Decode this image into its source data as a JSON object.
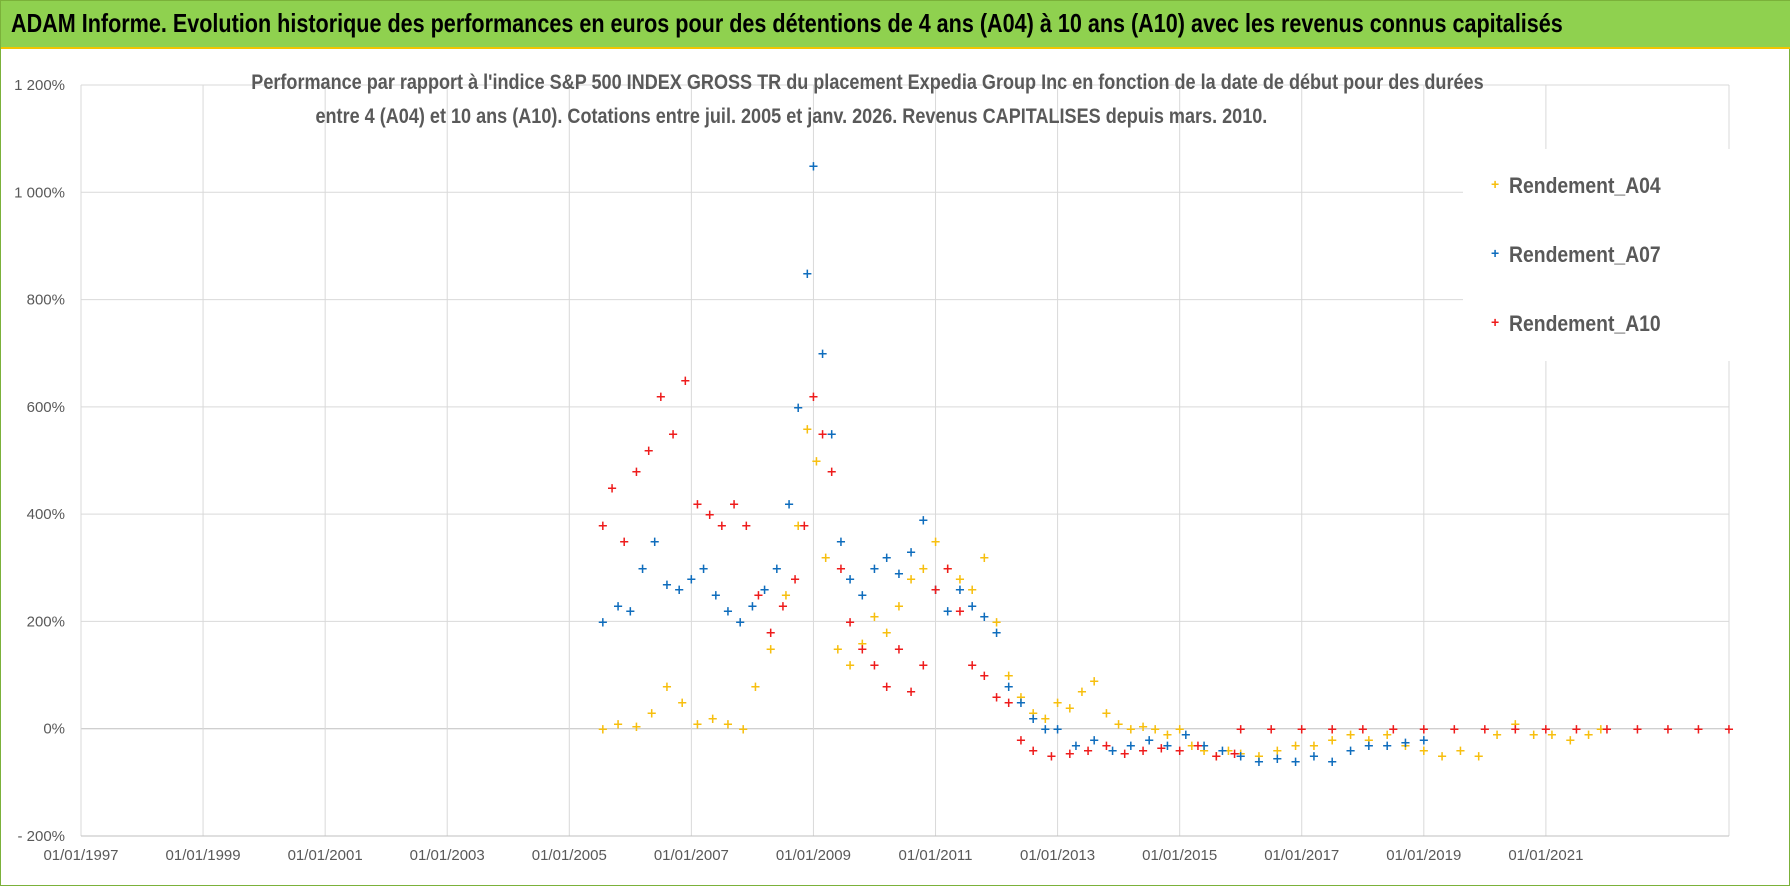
{
  "banner": {
    "title": "ADAM Informe. Evolution historique des performances en euros pour des détentions de 4 ans (A04) à 10 ans (A10) avec les revenus connus capitalisés"
  },
  "chart_data": {
    "type": "scatter",
    "title_line1": "Performance par rapport à l'indice S&P 500 INDEX GROSS TR  du placement Expedia Group Inc en fonction de la date de début pour des durées",
    "title_line2": "entre 4 (A04) et 10 ans (A10).  Cotations entre juil. 2005 et janv. 2026. Revenus CAPITALISES depuis mars. 2010.",
    "xlabel": "",
    "ylabel": "",
    "xlim": [
      1997.0,
      2024.0
    ],
    "ylim": [
      -200,
      1200
    ],
    "grid": true,
    "x_tick_values": [
      1997,
      1999,
      2001,
      2003,
      2005,
      2007,
      2009,
      2011,
      2013,
      2015,
      2017,
      2019,
      2021
    ],
    "x_tick_labels": [
      "01/01/1997",
      "01/01/1999",
      "01/01/2001",
      "01/01/2003",
      "01/01/2005",
      "01/01/2007",
      "01/01/2009",
      "01/01/2011",
      "01/01/2013",
      "01/01/2015",
      "01/01/2017",
      "01/01/2019",
      "01/01/2021"
    ],
    "y_tick_values": [
      1200,
      1000,
      800,
      600,
      400,
      200,
      0,
      -200
    ],
    "y_tick_labels": [
      "1 200%",
      "1 000%",
      "800%",
      "600%",
      "400%",
      "200%",
      "0%",
      "- 200%"
    ],
    "legend_position": "top-right",
    "series": [
      {
        "name": "Rendement_A04",
        "color": "#f7bf0f",
        "x": [
          2005.55,
          2005.8,
          2006.1,
          2006.35,
          2006.6,
          2006.85,
          2007.1,
          2007.35,
          2007.6,
          2007.85,
          2008.05,
          2008.3,
          2008.55,
          2008.75,
          2008.9,
          2009.05,
          2009.2,
          2009.4,
          2009.6,
          2009.8,
          2010.0,
          2010.2,
          2010.4,
          2010.6,
          2010.8,
          2011.0,
          2011.2,
          2011.4,
          2011.6,
          2011.8,
          2012.0,
          2012.2,
          2012.4,
          2012.6,
          2012.8,
          2013.0,
          2013.2,
          2013.4,
          2013.6,
          2013.8,
          2014.0,
          2014.2,
          2014.4,
          2014.6,
          2014.8,
          2015.0,
          2015.2,
          2015.4,
          2015.6,
          2015.8,
          2016.0,
          2016.3,
          2016.6,
          2016.9,
          2017.2,
          2017.5,
          2017.8,
          2018.1,
          2018.4,
          2018.7,
          2019.0,
          2019.3,
          2019.6,
          2019.9,
          2020.2,
          2020.5,
          2020.8,
          2021.1,
          2021.4,
          2021.7,
          2021.9
        ],
        "values": [
          0,
          10,
          5,
          30,
          80,
          50,
          10,
          20,
          10,
          0,
          80,
          150,
          250,
          380,
          560,
          500,
          320,
          150,
          120,
          160,
          210,
          180,
          230,
          280,
          300,
          350,
          300,
          280,
          260,
          320,
          200,
          100,
          60,
          30,
          20,
          50,
          40,
          70,
          90,
          30,
          10,
          0,
          5,
          0,
          -10,
          0,
          -30,
          -40,
          -50,
          -40,
          -45,
          -50,
          -40,
          -30,
          -30,
          -20,
          -10,
          -20,
          -10,
          -30,
          -40,
          -50,
          -40,
          -50,
          -10,
          10,
          -10,
          -10,
          -20,
          -10,
          0
        ]
      },
      {
        "name": "Rendement_A07",
        "color": "#0f6dbd",
        "x": [
          2005.55,
          2005.8,
          2006.0,
          2006.2,
          2006.4,
          2006.6,
          2006.8,
          2007.0,
          2007.2,
          2007.4,
          2007.6,
          2007.8,
          2008.0,
          2008.2,
          2008.4,
          2008.6,
          2008.75,
          2008.9,
          2009.0,
          2009.15,
          2009.3,
          2009.45,
          2009.6,
          2009.8,
          2010.0,
          2010.2,
          2010.4,
          2010.6,
          2010.8,
          2011.0,
          2011.2,
          2011.4,
          2011.6,
          2011.8,
          2012.0,
          2012.2,
          2012.4,
          2012.6,
          2012.8,
          2013.0,
          2013.3,
          2013.6,
          2013.9,
          2014.2,
          2014.5,
          2014.8,
          2015.1,
          2015.4,
          2015.7,
          2016.0,
          2016.3,
          2016.6,
          2016.9,
          2017.2,
          2017.5,
          2017.8,
          2018.1,
          2018.4,
          2018.7,
          2019.0
        ],
        "values": [
          200,
          230,
          220,
          300,
          350,
          270,
          260,
          280,
          300,
          250,
          220,
          200,
          230,
          260,
          300,
          420,
          600,
          850,
          1050,
          700,
          550,
          350,
          280,
          250,
          300,
          320,
          290,
          330,
          390,
          260,
          220,
          260,
          230,
          210,
          180,
          80,
          50,
          20,
          0,
          0,
          -30,
          -20,
          -40,
          -30,
          -20,
          -30,
          -10,
          -30,
          -40,
          -50,
          -60,
          -55,
          -60,
          -50,
          -60,
          -40,
          -30,
          -30,
          -25,
          -20
        ]
      },
      {
        "name": "Rendement_A10",
        "color": "#ee1c1c",
        "x": [
          2005.55,
          2005.7,
          2005.9,
          2006.1,
          2006.3,
          2006.5,
          2006.7,
          2006.9,
          2007.1,
          2007.3,
          2007.5,
          2007.7,
          2007.9,
          2008.1,
          2008.3,
          2008.5,
          2008.7,
          2008.85,
          2009.0,
          2009.15,
          2009.3,
          2009.45,
          2009.6,
          2009.8,
          2010.0,
          2010.2,
          2010.4,
          2010.6,
          2010.8,
          2011.0,
          2011.2,
          2011.4,
          2011.6,
          2011.8,
          2012.0,
          2012.2,
          2012.4,
          2012.6,
          2012.9,
          2013.2,
          2013.5,
          2013.8,
          2014.1,
          2014.4,
          2014.7,
          2015.0,
          2015.3,
          2015.6,
          2015.9,
          2016.0,
          2016.5,
          2017.0,
          2017.5,
          2018.0,
          2018.5,
          2019.0,
          2019.5,
          2020.0,
          2020.5,
          2021.0,
          2021.5,
          2022.0,
          2022.5,
          2023.0,
          2023.5,
          2024.0
        ],
        "values": [
          380,
          450,
          350,
          480,
          520,
          620,
          550,
          650,
          420,
          400,
          380,
          420,
          380,
          250,
          180,
          230,
          280,
          380,
          620,
          550,
          480,
          300,
          200,
          150,
          120,
          80,
          150,
          70,
          120,
          260,
          300,
          220,
          120,
          100,
          60,
          50,
          -20,
          -40,
          -50,
          -45,
          -40,
          -30,
          -45,
          -40,
          -35,
          -40,
          -30,
          -50,
          -45,
          0,
          0,
          0,
          0,
          0,
          0,
          0,
          0,
          0,
          0,
          0,
          0,
          0,
          0,
          0,
          0,
          0
        ]
      }
    ]
  },
  "legend": {
    "items": [
      {
        "label": "Rendement_A04",
        "marker": "+"
      },
      {
        "label": "Rendement_A07",
        "marker": "+"
      },
      {
        "label": "Rendement_A10",
        "marker": "+"
      }
    ]
  }
}
